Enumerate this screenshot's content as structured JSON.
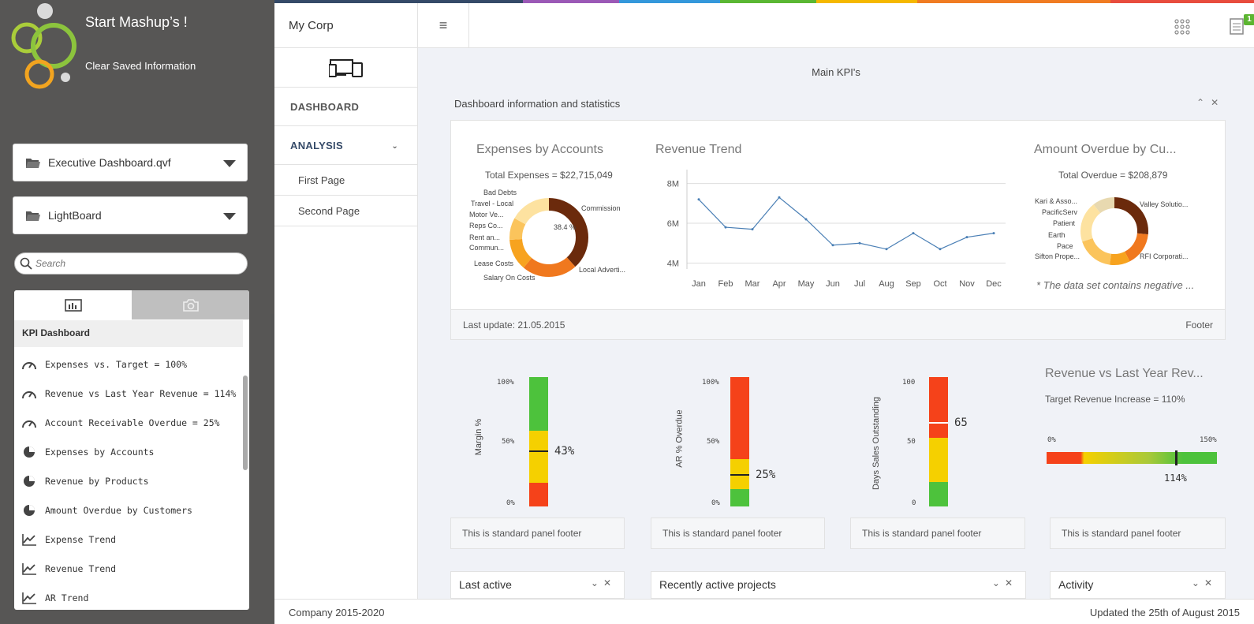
{
  "brand": {
    "title": "Start Mashup’s !",
    "clear": "Clear Saved Information"
  },
  "selects": {
    "app": "Executive Dashboard.qvf",
    "sheet": "LightBoard"
  },
  "search": {
    "placeholder": "Search"
  },
  "panel": {
    "heading": "KPI Dashboard",
    "items": [
      {
        "label": "Expenses vs. Target = 100%",
        "icon": "gauge-icon"
      },
      {
        "label": "Revenue vs Last Year Revenue = 114%",
        "icon": "gauge-icon"
      },
      {
        "label": "Account Receivable Overdue = 25%",
        "icon": "gauge-icon"
      },
      {
        "label": "Expenses by Accounts",
        "icon": "pie-chart-icon"
      },
      {
        "label": "Revenue by Products",
        "icon": "pie-chart-icon"
      },
      {
        "label": "Amount Overdue by Customers",
        "icon": "pie-chart-icon"
      },
      {
        "label": "Expense Trend",
        "icon": "line-chart-icon"
      },
      {
        "label": "Revenue Trend",
        "icon": "line-chart-icon"
      },
      {
        "label": "AR Trend",
        "icon": "line-chart-icon"
      }
    ]
  },
  "topbar": {
    "company": "My Corp",
    "badge": "1"
  },
  "nav": {
    "dashboard": "DASHBOARD",
    "analysis": "ANALYSIS",
    "pages": [
      "First Page",
      "Second Page"
    ]
  },
  "main": {
    "title": "Main KPI's",
    "section": "Dashboard information and statistics",
    "last_update": "Last update: 21.05.2015",
    "footer": "Footer"
  },
  "colors": {
    "accent": "#354a68",
    "green": "#4dc23c",
    "yellow": "#f5d000",
    "orange": "#f7a51b",
    "red": "#f5421a",
    "brown": "#6b2a0c"
  },
  "charts": {
    "expenses": {
      "title": "Expenses by Accounts",
      "total": "Total Expenses = $22,715,049",
      "pct": "38.4 %",
      "labels": [
        "Bad Debts",
        "Travel - Local",
        "Motor Ve...",
        "Reps Co...",
        "Rent an...",
        "Commun...",
        "Lease Costs",
        "Salary On Costs",
        "Commission",
        "Local Adverti..."
      ]
    },
    "trend": {
      "title": "Revenue Trend"
    },
    "overdue": {
      "title": "Amount Overdue by Cu...",
      "total": "Total Overdue = $208,879",
      "note": "* The data set contains negative ...",
      "labels": [
        "Kari & Asso...",
        "PacificServ",
        "Patient",
        "Earth",
        "Pace",
        "Sifton Prope...",
        "Valley Solutio...",
        "RFI Corporati..."
      ]
    }
  },
  "gauges": {
    "margin": {
      "title": "Margin %",
      "ticks": [
        "100%",
        "50%",
        "0%"
      ],
      "value": "43%"
    },
    "ar": {
      "title": "AR % Overdue",
      "ticks": [
        "100%",
        "50%",
        "0%"
      ],
      "value": "25%"
    },
    "dso": {
      "title": "Days Sales Outstanding",
      "ticks": [
        "100",
        "50",
        "0"
      ],
      "value": "65"
    },
    "revlast": {
      "title": "Revenue vs Last Year Rev...",
      "sub": "Target Revenue Increase = 110%",
      "min": "0%",
      "max": "150%",
      "value": "114%"
    }
  },
  "panel_footer": "This is standard panel footer",
  "bottom": {
    "last_active": "Last active",
    "recent": "Recently active projects",
    "activity": "Activity"
  },
  "footer": {
    "left": "Company 2015-2020",
    "right": "Updated the 25th of August 2015"
  },
  "chart_data": [
    {
      "type": "line",
      "title": "Revenue Trend",
      "categories": [
        "Jan",
        "Feb",
        "Mar",
        "Apr",
        "May",
        "Jun",
        "Jul",
        "Aug",
        "Sep",
        "Oct",
        "Nov",
        "Dec"
      ],
      "values": [
        7.2,
        5.8,
        5.7,
        7.3,
        6.2,
        4.9,
        5.0,
        4.7,
        5.5,
        4.7,
        5.3,
        5.5
      ],
      "yticks": [
        "8M",
        "6M",
        "4M"
      ],
      "ylim": [
        3.7,
        8.7
      ]
    }
  ]
}
